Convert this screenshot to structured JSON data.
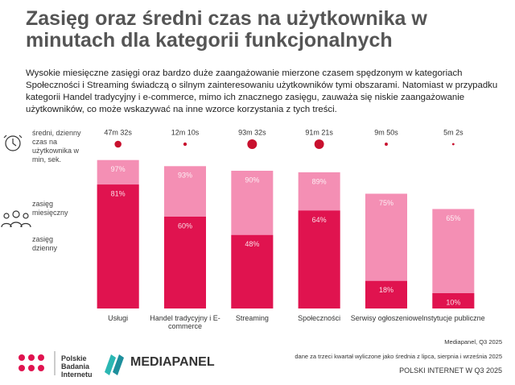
{
  "title": "Zasięg oraz średni czas na użytkownika w minutach dla kategorii funkcjonalnych",
  "description": "Wysokie miesięczne zasięgi oraz bardzo duże zaangażowanie mierzone czasem spędzonym w kategoriach Społeczności i Streaming świadczą o silnym zainteresowaniu użytkowników tymi obszarami. Natomiast w przypadku kategorii Handel tradycyjny i e-commerce, mimo ich znacznego zasięgu, zauważa się niskie zaangażowanie użytkowników, co może wskazywać na inne wzorce korzystania z tych treści.",
  "chart_data": {
    "type": "bar",
    "categories": [
      "Usługi",
      "Handel tradycyjny i E-commerce",
      "Streaming",
      "Społeczności",
      "Serwisy ogłoszeniowe",
      "Instytucje publiczne"
    ],
    "series": [
      {
        "name": "zasięg miesięczny",
        "color": "#f48fb4",
        "values": [
          97,
          93,
          90,
          89,
          75,
          65
        ],
        "value_labels": [
          "97%",
          "93%",
          "90%",
          "89%",
          "75%",
          "65%"
        ]
      },
      {
        "name": "zasięg dzienny",
        "color": "#e0134f",
        "values": [
          81,
          60,
          48,
          64,
          18,
          10
        ],
        "value_labels": [
          "81%",
          "60%",
          "48%",
          "64%",
          "18%",
          "10%"
        ]
      }
    ],
    "time": {
      "name": "średni, dzienny czas na użytkownika w min, sek.",
      "color": "#c8102e",
      "values": [
        47.53,
        12.17,
        93.53,
        91.35,
        9.83,
        5.03
      ],
      "value_labels": [
        "47m 32s",
        "12m 10s",
        "93m 32s",
        "91m 21s",
        "9m 50s",
        "5m 2s"
      ]
    },
    "ylim": [
      0,
      100
    ]
  },
  "footer": {
    "logo1": "Polskie Badania Internetu",
    "logo2": "MEDIAPANEL",
    "source": "Mediapanel, Q3 2025",
    "note": "dane za trzeci kwartał wyliczone jako średnia z lipca, sierpnia i września 2025",
    "report": "POLSKI INTERNET W Q3 2025"
  }
}
